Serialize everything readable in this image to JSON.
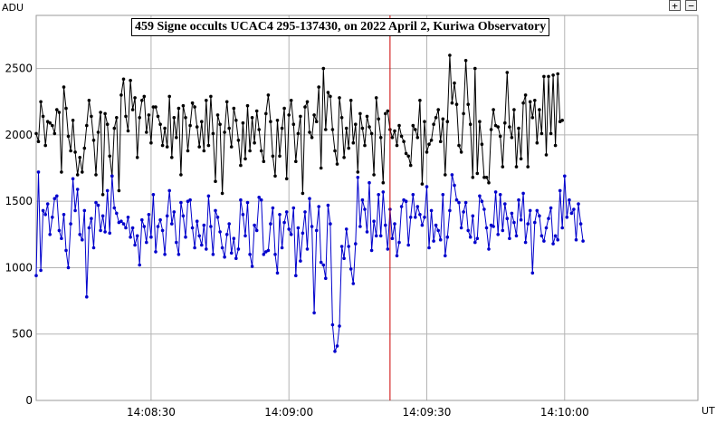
{
  "controls": {
    "zoom_in": "+",
    "zoom_out": "−"
  },
  "chart_data": {
    "type": "line",
    "title": "459 Signe occults UCAC4 295-137430, on 2022 April 2, Kuriwa Observatory",
    "ylabel": "ADU",
    "xlabel": "UT",
    "ylim": [
      0,
      2900
    ],
    "yticks": [
      0,
      500,
      1000,
      1500,
      2000,
      2500
    ],
    "xlim": [
      "14:08:05",
      "14:10:29"
    ],
    "xticks": [
      "14:08:30",
      "14:09:00",
      "14:09:30",
      "14:10:00"
    ],
    "grid": true,
    "event_marker_time": "14:09:22",
    "colors": {
      "marker": "#cc0000",
      "grid": "#b4b4b4",
      "series_black": "#000000",
      "series_blue": "#0000cc"
    },
    "series": [
      {
        "color": "#000000",
        "x_start": "14:08:05",
        "x_step_s": 0.5,
        "values": [
          2010,
          1950,
          2250,
          2140,
          1920,
          2100,
          2090,
          2070,
          2010,
          2190,
          2170,
          1720,
          2360,
          2200,
          1990,
          1880,
          2110,
          1870,
          1700,
          1830,
          1720,
          1900,
          2070,
          2260,
          2140,
          1960,
          1700,
          2020,
          2170,
          1550,
          2160,
          2080,
          1840,
          1690,
          2050,
          2130,
          1580,
          2300,
          2420,
          2140,
          2030,
          2410,
          2190,
          2280,
          1830,
          2130,
          2260,
          2290,
          2020,
          2150,
          1940,
          2210,
          2210,
          2140,
          2080,
          1920,
          2050,
          1910,
          2290,
          1830,
          2130,
          1980,
          2200,
          1700,
          2220,
          2130,
          1880,
          2070,
          2240,
          2210,
          2060,
          1910,
          2100,
          1880,
          2260,
          1920,
          2290,
          2010,
          1650,
          2150,
          2080,
          1560,
          2020,
          2250,
          2050,
          1910,
          2200,
          2110,
          1960,
          1770,
          2090,
          1820,
          2220,
          1880,
          2130,
          1940,
          2180,
          2040,
          1880,
          1800,
          2160,
          2300,
          2100,
          1840,
          1690,
          2110,
          1840,
          2050,
          2200,
          1670,
          2150,
          2260,
          2080,
          1800,
          2010,
          2140,
          1560,
          2210,
          2250,
          2020,
          1980,
          2150,
          2100,
          2360,
          1750,
          2500,
          2040,
          2320,
          2290,
          2040,
          1880,
          1780,
          2280,
          2130,
          1830,
          2050,
          1900,
          2260,
          1940,
          2080,
          1720,
          2160,
          2050,
          1920,
          2140,
          2060,
          2010,
          1700,
          2280,
          2120,
          1980,
          1640,
          2160,
          2180,
          2040,
          1980,
          2030,
          1920,
          2070,
          1990,
          1950,
          1860,
          1840,
          1770,
          2070,
          2040,
          1980,
          2260,
          1630,
          2100,
          1870,
          1930,
          1960,
          2080,
          2130,
          2190,
          1950,
          2120,
          1700,
          2100,
          2600,
          2240,
          2390,
          2230,
          1920,
          1870,
          2160,
          2560,
          2230,
          2080,
          1680,
          2500,
          1710,
          2100,
          1930,
          1680,
          1680,
          1640,
          2040,
          2190,
          2070,
          2060,
          1990,
          1760,
          2090,
          2470,
          2060,
          1980,
          2190,
          1760,
          2050,
          1820,
          2240,
          2300,
          1760,
          2250,
          2130,
          2260,
          1940,
          2190,
          2010,
          2440,
          1850,
          2440,
          2010,
          2450,
          1920,
          2460,
          2100,
          2110
        ],
        "point_names": "black-series-point"
      },
      {
        "color": "#0000cc",
        "x_start": "14:08:05",
        "x_step_s": 0.5,
        "values": [
          940,
          1720,
          980,
          1430,
          1400,
          1480,
          1250,
          1380,
          1520,
          1540,
          1280,
          1220,
          1400,
          1130,
          1000,
          1330,
          1670,
          1430,
          1590,
          1250,
          1210,
          1430,
          780,
          1300,
          1370,
          1150,
          1490,
          1470,
          1280,
          1390,
          1270,
          1580,
          1260,
          1690,
          1450,
          1410,
          1340,
          1350,
          1330,
          1300,
          1380,
          1230,
          1300,
          1170,
          1240,
          1020,
          1360,
          1310,
          1190,
          1400,
          1230,
          1550,
          1120,
          1310,
          1360,
          1280,
          1100,
          1390,
          1580,
          1330,
          1420,
          1190,
          1100,
          1490,
          1390,
          1230,
          1500,
          1510,
          1300,
          1150,
          1350,
          1240,
          1170,
          1320,
          1140,
          1540,
          1310,
          1100,
          1430,
          1380,
          1270,
          1150,
          1080,
          1250,
          1330,
          1110,
          1220,
          1070,
          1140,
          1510,
          1400,
          1240,
          1490,
          1100,
          1010,
          1320,
          1280,
          1530,
          1510,
          1100,
          1120,
          1130,
          1330,
          1450,
          1100,
          960,
          1400,
          1150,
          1340,
          1420,
          1290,
          1250,
          1450,
          940,
          1300,
          1050,
          1260,
          1420,
          1140,
          1520,
          1310,
          660,
          1280,
          1460,
          1040,
          1020,
          920,
          1470,
          1330,
          570,
          370,
          410,
          560,
          1160,
          1070,
          1290,
          1160,
          990,
          880,
          1180,
          1680,
          1310,
          1510,
          1440,
          1270,
          1640,
          1130,
          1350,
          1240,
          1550,
          1240,
          1570,
          1320,
          1140,
          1440,
          1220,
          1330,
          1090,
          1190,
          1460,
          1510,
          1500,
          1170,
          1380,
          1550,
          1380,
          1460,
          1400,
          1320,
          1380,
          1610,
          1150,
          1430,
          1200,
          1320,
          1280,
          1210,
          1550,
          1090,
          1230,
          1430,
          1700,
          1620,
          1510,
          1490,
          1300,
          1420,
          1490,
          1280,
          1230,
          1390,
          1190,
          1220,
          1540,
          1500,
          1440,
          1300,
          1140,
          1320,
          1310,
          1570,
          1250,
          1550,
          1280,
          1480,
          1370,
          1220,
          1410,
          1340,
          1240,
          1510,
          1360,
          1560,
          1190,
          1330,
          1430,
          960,
          1340,
          1430,
          1390,
          1240,
          1200,
          1300,
          1370,
          1450,
          1180,
          1240,
          1210,
          1580,
          1300,
          1690,
          1380,
          1510,
          1410,
          1440,
          1210,
          1480,
          1330,
          1200
        ]
      }
    ]
  }
}
